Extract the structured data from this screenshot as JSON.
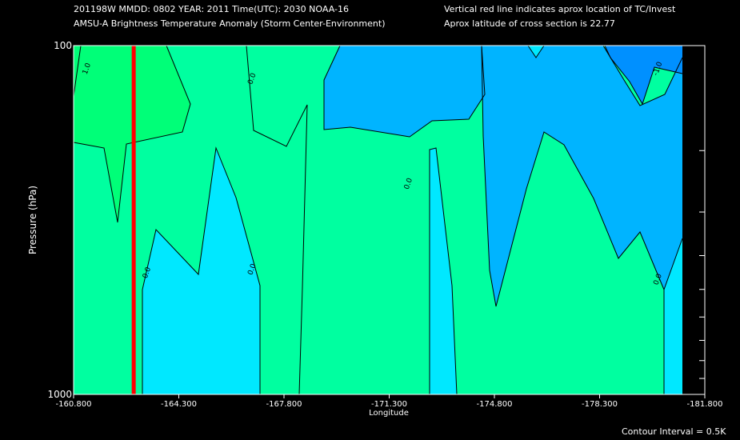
{
  "header": {
    "line1": "201198W  MMDD: 0802 YEAR: 2011 Time(UTC): 2030 NOAA-16",
    "line2": "AMSU-A Brightness Temperature Anomaly (Storm Center-Environment)",
    "note1": "Vertical red line indicates aprox location of TC/Invest",
    "note2": "Aprox latitude of cross section is 22.77"
  },
  "footer": {
    "contour_interval": "Contour Interval = 0.5K"
  },
  "colors": {
    "background": "#000000",
    "band_neg1_0": "#00e8ff",
    "band_0_1": "#00ffa0",
    "band_1_plus": "#00ff78",
    "band_neg1_neg2": "#00b4ff",
    "band_neg2_minus": "#0090ff",
    "storm_line": "#ff0000"
  },
  "chart_data": {
    "type": "heatmap",
    "title": "AMSU-A Brightness Temperature Anomaly (Storm Center-Environment)",
    "xlabel": "Longitude",
    "ylabel": "Pressure (hPa)",
    "x_ticks": [
      "-160.800",
      "-164.300",
      "-167.800",
      "-171.300",
      "-174.800",
      "-178.300",
      "-181.800"
    ],
    "x_tick_values": [
      -160.8,
      -164.3,
      -167.8,
      -171.3,
      -174.8,
      -178.3,
      -181.8
    ],
    "xlim": [
      -160.8,
      -181.8
    ],
    "y_ticks": [
      "100",
      "1000"
    ],
    "ylim": [
      1000,
      100
    ],
    "y_scale": "log",
    "storm_longitude": -162.8,
    "contour_interval_K": 0.5,
    "contour_labels": [
      {
        "text": "1.0",
        "lon": -161.3,
        "p": 117
      },
      {
        "text": "0.0",
        "lon": -166.8,
        "p": 125
      },
      {
        "text": "0.0",
        "lon": -163.3,
        "p": 450
      },
      {
        "text": "0.0",
        "lon": -166.8,
        "p": 440
      },
      {
        "text": "0.0",
        "lon": -172.0,
        "p": 250
      },
      {
        "text": "-1.0",
        "lon": -180.3,
        "p": 117
      },
      {
        "text": "0.0",
        "lon": -180.3,
        "p": 470
      }
    ]
  }
}
